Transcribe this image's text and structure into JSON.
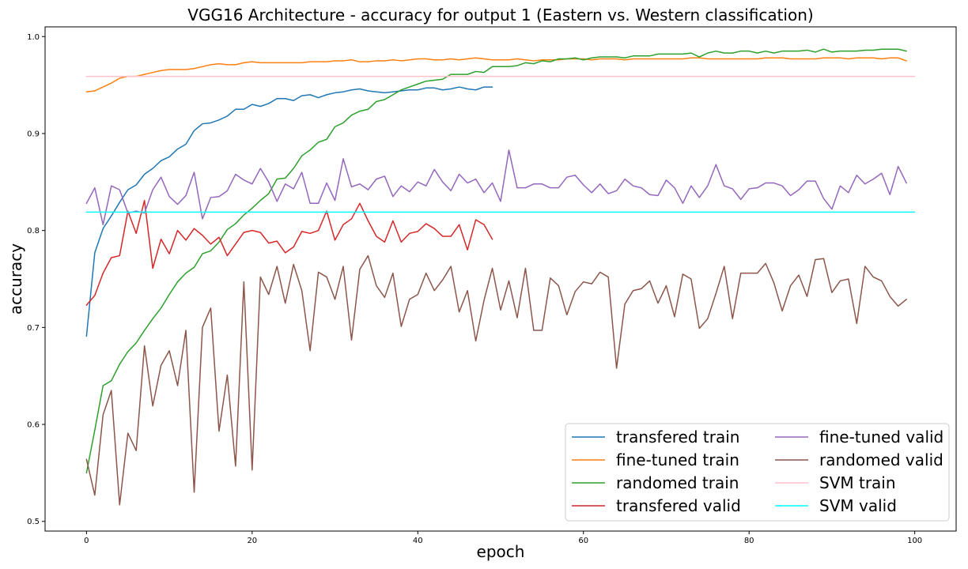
{
  "chart_data": {
    "type": "line",
    "title": "VGG16 Architecture - accuracy for output 1 (Eastern vs. Western classification)",
    "xlabel": "epoch",
    "ylabel": "accuracy",
    "xlim": [
      -5,
      105
    ],
    "ylim": [
      0.49,
      1.01
    ],
    "xticks": [
      0,
      20,
      40,
      60,
      80,
      100
    ],
    "yticks": [
      0.5,
      0.6,
      0.7,
      0.8,
      0.9,
      1.0
    ],
    "xtick_labels": [
      "0",
      "20",
      "40",
      "60",
      "80",
      "100"
    ],
    "ytick_labels": [
      "0.5",
      "0.6",
      "0.7",
      "0.8",
      "0.9",
      "1.0"
    ],
    "grid": false,
    "legend": {
      "placement": "lower-right",
      "columns": 2
    },
    "series": [
      {
        "name": "transfered train",
        "color": "#1f77b4",
        "x": [
          0,
          1,
          2,
          3,
          4,
          5,
          6,
          7,
          8,
          9,
          10,
          11,
          12,
          13,
          14,
          15,
          16,
          17,
          18,
          19,
          20,
          21,
          22,
          23,
          24,
          25,
          26,
          27,
          28,
          29,
          30,
          31,
          32,
          33,
          34,
          35,
          36,
          37,
          38,
          39,
          40,
          41,
          42,
          43,
          44,
          45,
          46,
          47,
          48,
          49
        ],
        "values": [
          0.691,
          0.777,
          0.802,
          0.815,
          0.829,
          0.842,
          0.847,
          0.858,
          0.864,
          0.872,
          0.876,
          0.884,
          0.889,
          0.903,
          0.91,
          0.911,
          0.914,
          0.918,
          0.925,
          0.925,
          0.93,
          0.928,
          0.931,
          0.936,
          0.936,
          0.934,
          0.939,
          0.94,
          0.937,
          0.94,
          0.942,
          0.943,
          0.945,
          0.946,
          0.944,
          0.943,
          0.942,
          0.943,
          0.944,
          0.945,
          0.945,
          0.947,
          0.947,
          0.945,
          0.946,
          0.948,
          0.946,
          0.945,
          0.948,
          0.948
        ]
      },
      {
        "name": "fine-tuned train",
        "color": "#ff7f0e",
        "x": [
          0,
          1,
          2,
          3,
          4,
          5,
          6,
          7,
          8,
          9,
          10,
          11,
          12,
          13,
          14,
          15,
          16,
          17,
          18,
          19,
          20,
          21,
          22,
          23,
          24,
          25,
          26,
          27,
          28,
          29,
          30,
          31,
          32,
          33,
          34,
          35,
          36,
          37,
          38,
          39,
          40,
          41,
          42,
          43,
          44,
          45,
          46,
          47,
          48,
          49,
          50,
          51,
          52,
          53,
          54,
          55,
          56,
          57,
          58,
          59,
          60,
          61,
          62,
          63,
          64,
          65,
          66,
          67,
          68,
          69,
          70,
          71,
          72,
          73,
          74,
          75,
          76,
          77,
          78,
          79,
          80,
          81,
          82,
          83,
          84,
          85,
          86,
          87,
          88,
          89,
          90,
          91,
          92,
          93,
          94,
          95,
          96,
          97,
          98,
          99
        ],
        "values": [
          0.943,
          0.944,
          0.948,
          0.952,
          0.957,
          0.959,
          0.959,
          0.961,
          0.963,
          0.965,
          0.966,
          0.966,
          0.966,
          0.967,
          0.969,
          0.971,
          0.972,
          0.971,
          0.971,
          0.973,
          0.974,
          0.973,
          0.973,
          0.973,
          0.973,
          0.973,
          0.973,
          0.974,
          0.974,
          0.974,
          0.975,
          0.975,
          0.976,
          0.974,
          0.974,
          0.975,
          0.975,
          0.976,
          0.975,
          0.976,
          0.977,
          0.977,
          0.976,
          0.976,
          0.977,
          0.976,
          0.977,
          0.978,
          0.977,
          0.976,
          0.976,
          0.976,
          0.977,
          0.976,
          0.975,
          0.976,
          0.976,
          0.976,
          0.977,
          0.977,
          0.977,
          0.976,
          0.977,
          0.977,
          0.977,
          0.976,
          0.977,
          0.977,
          0.977,
          0.977,
          0.977,
          0.977,
          0.977,
          0.978,
          0.978,
          0.977,
          0.977,
          0.977,
          0.977,
          0.977,
          0.977,
          0.977,
          0.978,
          0.978,
          0.978,
          0.977,
          0.977,
          0.977,
          0.977,
          0.978,
          0.978,
          0.978,
          0.977,
          0.978,
          0.978,
          0.978,
          0.977,
          0.978,
          0.978,
          0.975
        ]
      },
      {
        "name": "randomed train",
        "color": "#2ca02c",
        "x": [
          0,
          1,
          2,
          3,
          4,
          5,
          6,
          7,
          8,
          9,
          10,
          11,
          12,
          13,
          14,
          15,
          16,
          17,
          18,
          19,
          20,
          21,
          22,
          23,
          24,
          25,
          26,
          27,
          28,
          29,
          30,
          31,
          32,
          33,
          34,
          35,
          36,
          37,
          38,
          39,
          40,
          41,
          42,
          43,
          44,
          45,
          46,
          47,
          48,
          49,
          50,
          51,
          52,
          53,
          54,
          55,
          56,
          57,
          58,
          59,
          60,
          61,
          62,
          63,
          64,
          65,
          66,
          67,
          68,
          69,
          70,
          71,
          72,
          73,
          74,
          75,
          76,
          77,
          78,
          79,
          80,
          81,
          82,
          83,
          84,
          85,
          86,
          87,
          88,
          89,
          90,
          91,
          92,
          93,
          94,
          95,
          96,
          97,
          98,
          99
        ],
        "values": [
          0.55,
          0.594,
          0.64,
          0.645,
          0.662,
          0.675,
          0.684,
          0.697,
          0.709,
          0.72,
          0.734,
          0.747,
          0.756,
          0.762,
          0.776,
          0.779,
          0.788,
          0.801,
          0.807,
          0.816,
          0.823,
          0.831,
          0.838,
          0.853,
          0.854,
          0.864,
          0.877,
          0.883,
          0.891,
          0.894,
          0.907,
          0.911,
          0.919,
          0.923,
          0.925,
          0.933,
          0.935,
          0.94,
          0.945,
          0.948,
          0.951,
          0.954,
          0.955,
          0.956,
          0.961,
          0.961,
          0.961,
          0.964,
          0.963,
          0.969,
          0.969,
          0.969,
          0.97,
          0.973,
          0.972,
          0.975,
          0.974,
          0.977,
          0.977,
          0.978,
          0.976,
          0.978,
          0.979,
          0.979,
          0.979,
          0.978,
          0.98,
          0.98,
          0.98,
          0.982,
          0.982,
          0.982,
          0.982,
          0.983,
          0.979,
          0.983,
          0.985,
          0.983,
          0.983,
          0.985,
          0.985,
          0.983,
          0.985,
          0.983,
          0.985,
          0.985,
          0.985,
          0.986,
          0.984,
          0.987,
          0.984,
          0.985,
          0.985,
          0.985,
          0.986,
          0.986,
          0.987,
          0.987,
          0.987,
          0.985
        ]
      },
      {
        "name": "transfered valid",
        "color": "#d62728",
        "x": [
          0,
          1,
          2,
          3,
          4,
          5,
          6,
          7,
          8,
          9,
          10,
          11,
          12,
          13,
          14,
          15,
          16,
          17,
          18,
          19,
          20,
          21,
          22,
          23,
          24,
          25,
          26,
          27,
          28,
          29,
          30,
          31,
          32,
          33,
          34,
          35,
          36,
          37,
          38,
          39,
          40,
          41,
          42,
          43,
          44,
          45,
          46,
          47,
          48,
          49
        ],
        "values": [
          0.723,
          0.733,
          0.756,
          0.772,
          0.774,
          0.82,
          0.797,
          0.831,
          0.761,
          0.791,
          0.776,
          0.8,
          0.79,
          0.802,
          0.795,
          0.786,
          0.793,
          0.774,
          0.786,
          0.798,
          0.8,
          0.798,
          0.787,
          0.789,
          0.777,
          0.783,
          0.799,
          0.797,
          0.8,
          0.82,
          0.79,
          0.806,
          0.812,
          0.828,
          0.81,
          0.794,
          0.788,
          0.81,
          0.788,
          0.797,
          0.799,
          0.807,
          0.802,
          0.794,
          0.794,
          0.806,
          0.78,
          0.811,
          0.806,
          0.791
        ]
      },
      {
        "name": "fine-tuned valid",
        "color": "#9467bd",
        "x": [
          0,
          1,
          2,
          3,
          4,
          5,
          6,
          7,
          8,
          9,
          10,
          11,
          12,
          13,
          14,
          15,
          16,
          17,
          18,
          19,
          20,
          21,
          22,
          23,
          24,
          25,
          26,
          27,
          28,
          29,
          30,
          31,
          32,
          33,
          34,
          35,
          36,
          37,
          38,
          39,
          40,
          41,
          42,
          43,
          44,
          45,
          46,
          47,
          48,
          49,
          50,
          51,
          52,
          53,
          54,
          55,
          56,
          57,
          58,
          59,
          60,
          61,
          62,
          63,
          64,
          65,
          66,
          67,
          68,
          69,
          70,
          71,
          72,
          73,
          74,
          75,
          76,
          77,
          78,
          79,
          80,
          81,
          82,
          83,
          84,
          85,
          86,
          87,
          88,
          89,
          90,
          91,
          92,
          93,
          94,
          95,
          96,
          97,
          98,
          99
        ],
        "values": [
          0.828,
          0.844,
          0.806,
          0.846,
          0.842,
          0.818,
          0.82,
          0.818,
          0.842,
          0.855,
          0.835,
          0.827,
          0.836,
          0.86,
          0.812,
          0.834,
          0.835,
          0.841,
          0.858,
          0.852,
          0.848,
          0.864,
          0.85,
          0.83,
          0.848,
          0.843,
          0.86,
          0.828,
          0.828,
          0.849,
          0.831,
          0.874,
          0.845,
          0.848,
          0.842,
          0.853,
          0.856,
          0.835,
          0.846,
          0.84,
          0.85,
          0.846,
          0.863,
          0.85,
          0.841,
          0.858,
          0.849,
          0.853,
          0.839,
          0.849,
          0.83,
          0.883,
          0.844,
          0.844,
          0.848,
          0.848,
          0.844,
          0.844,
          0.855,
          0.857,
          0.847,
          0.839,
          0.848,
          0.838,
          0.841,
          0.853,
          0.846,
          0.844,
          0.837,
          0.836,
          0.852,
          0.844,
          0.828,
          0.846,
          0.834,
          0.846,
          0.868,
          0.846,
          0.843,
          0.832,
          0.843,
          0.844,
          0.849,
          0.849,
          0.846,
          0.836,
          0.842,
          0.851,
          0.851,
          0.833,
          0.822,
          0.846,
          0.839,
          0.857,
          0.848,
          0.853,
          0.859,
          0.837,
          0.866,
          0.849
        ]
      },
      {
        "name": "randomed valid",
        "color": "#8c564b",
        "x": [
          0,
          1,
          2,
          3,
          4,
          5,
          6,
          7,
          8,
          9,
          10,
          11,
          12,
          13,
          14,
          15,
          16,
          17,
          18,
          19,
          20,
          21,
          22,
          23,
          24,
          25,
          26,
          27,
          28,
          29,
          30,
          31,
          32,
          33,
          34,
          35,
          36,
          37,
          38,
          39,
          40,
          41,
          42,
          43,
          44,
          45,
          46,
          47,
          48,
          49,
          50,
          51,
          52,
          53,
          54,
          55,
          56,
          57,
          58,
          59,
          60,
          61,
          62,
          63,
          64,
          65,
          66,
          67,
          68,
          69,
          70,
          71,
          72,
          73,
          74,
          75,
          76,
          77,
          78,
          79,
          80,
          81,
          82,
          83,
          84,
          85,
          86,
          87,
          88,
          89,
          90,
          91,
          92,
          93,
          94,
          95,
          96,
          97,
          98,
          99
        ],
        "values": [
          0.564,
          0.527,
          0.61,
          0.635,
          0.517,
          0.591,
          0.573,
          0.681,
          0.619,
          0.661,
          0.676,
          0.64,
          0.697,
          0.53,
          0.7,
          0.72,
          0.593,
          0.651,
          0.557,
          0.747,
          0.553,
          0.752,
          0.734,
          0.763,
          0.725,
          0.765,
          0.738,
          0.676,
          0.757,
          0.752,
          0.729,
          0.763,
          0.687,
          0.76,
          0.774,
          0.743,
          0.731,
          0.756,
          0.701,
          0.729,
          0.734,
          0.756,
          0.738,
          0.749,
          0.763,
          0.716,
          0.738,
          0.686,
          0.728,
          0.761,
          0.718,
          0.748,
          0.71,
          0.761,
          0.697,
          0.697,
          0.751,
          0.743,
          0.713,
          0.737,
          0.747,
          0.745,
          0.757,
          0.752,
          0.658,
          0.724,
          0.738,
          0.74,
          0.748,
          0.725,
          0.743,
          0.711,
          0.755,
          0.75,
          0.699,
          0.709,
          0.735,
          0.763,
          0.709,
          0.756,
          0.756,
          0.756,
          0.766,
          0.746,
          0.717,
          0.743,
          0.754,
          0.732,
          0.77,
          0.771,
          0.736,
          0.748,
          0.75,
          0.704,
          0.763,
          0.752,
          0.748,
          0.732,
          0.722,
          0.729
        ]
      },
      {
        "name": "SVM train",
        "color": "#ffc0cb",
        "x": [
          0,
          100
        ],
        "values": [
          0.959,
          0.959
        ]
      },
      {
        "name": "SVM valid",
        "color": "#00ffff",
        "x": [
          0,
          100
        ],
        "values": [
          0.819,
          0.819
        ]
      }
    ]
  }
}
